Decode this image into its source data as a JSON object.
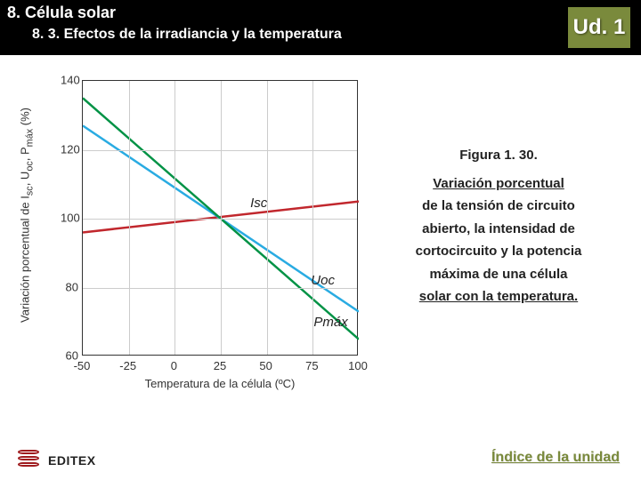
{
  "header": {
    "title": "8. Célula solar",
    "subtitle": "8. 3. Efectos de la irradiancia y la temperatura",
    "badge": "Ud. 1"
  },
  "chart": {
    "type": "line",
    "xlabel": "Temperatura de la célula (ºC)",
    "ylabel": "Variación porcentual de Isc, Uoc, Pmáx (%)",
    "xlim": [
      -50,
      100
    ],
    "ylim": [
      60,
      140
    ],
    "xtick_step": 25,
    "ytick_step": 20,
    "xticks": [
      -50,
      -25,
      0,
      25,
      50,
      75,
      100
    ],
    "yticks": [
      60,
      80,
      100,
      120,
      140
    ],
    "grid_color": "#cccccc",
    "border_color": "#333333",
    "background_color": "#ffffff",
    "series": [
      {
        "name": "Isc",
        "label": "Isc",
        "color": "#c1272d",
        "line_width": 2.5,
        "points": [
          [
            -50,
            96
          ],
          [
            100,
            105
          ]
        ],
        "label_pos": {
          "x_frac": 0.61,
          "y_frac": 0.42
        }
      },
      {
        "name": "Uoc",
        "label": "Uoc",
        "color": "#29abe2",
        "line_width": 2.5,
        "points": [
          [
            -50,
            127
          ],
          [
            100,
            73
          ]
        ],
        "label_pos": {
          "x_frac": 0.83,
          "y_frac": 0.7
        }
      },
      {
        "name": "Pmax",
        "label": "Pmáx",
        "color": "#009245",
        "line_width": 2.5,
        "points": [
          [
            -50,
            135
          ],
          [
            100,
            65
          ]
        ],
        "label_pos": {
          "x_frac": 0.84,
          "y_frac": 0.85
        }
      }
    ],
    "label_fontsize": 13,
    "tick_fontsize": 13
  },
  "caption": {
    "figure": "Figura 1. 30.",
    "text_lines": [
      "Variación porcentual",
      "de la tensión de circuito",
      "abierto, la intensidad de",
      "cortocircuito y la potencia",
      "máxima de una célula",
      "solar con la temperatura."
    ]
  },
  "footer": {
    "logo_text": "EDITEX",
    "index_link": "Índice de la unidad"
  }
}
